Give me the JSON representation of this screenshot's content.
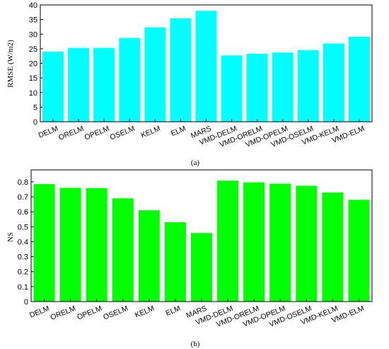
{
  "chart_data": [
    {
      "type": "bar",
      "panel_label": "(a)",
      "categories": [
        "DELM",
        "ORELM",
        "OPELM",
        "OSELM",
        "KELM",
        "ELM",
        "MARS",
        "VMD-DELM",
        "VMD-ORELM",
        "VMD-OPELM",
        "VMD-OSELM",
        "VMD-KELM",
        "VMD-ELM"
      ],
      "values": [
        24.0,
        25.3,
        25.3,
        28.7,
        32.3,
        35.4,
        38.0,
        22.7,
        23.3,
        23.7,
        24.5,
        26.8,
        29.1
      ],
      "yticks": [
        "0",
        "5",
        "10",
        "15",
        "20",
        "25",
        "30",
        "35",
        "40"
      ],
      "ylim": [
        0,
        40
      ],
      "ylabel": "RMSE (W/m2)",
      "xlabel": "",
      "title": "",
      "bar_color": "#00ffff",
      "grid": false
    },
    {
      "type": "bar",
      "panel_label": "(b)",
      "categories": [
        "DELM",
        "ORELM",
        "OPELM",
        "OSELM",
        "KELM",
        "ELM",
        "MARS",
        "VMD-DELM",
        "VMD-ORELM",
        "VMD-OPELM",
        "VMD-OSELM",
        "VMD-KELM",
        "VMD-ELM"
      ],
      "values": [
        0.785,
        0.76,
        0.758,
        0.69,
        0.61,
        0.53,
        0.458,
        0.808,
        0.797,
        0.788,
        0.774,
        0.729,
        0.68
      ],
      "yticks": [
        "0",
        "0.1",
        "0.2",
        "0.3",
        "0.4",
        "0.5",
        "0.6",
        "0.7",
        "0.8"
      ],
      "ylim": [
        0,
        0.88
      ],
      "ylabel": "NS",
      "xlabel": "",
      "title": "",
      "bar_color": "#00ff00",
      "grid": false
    }
  ]
}
